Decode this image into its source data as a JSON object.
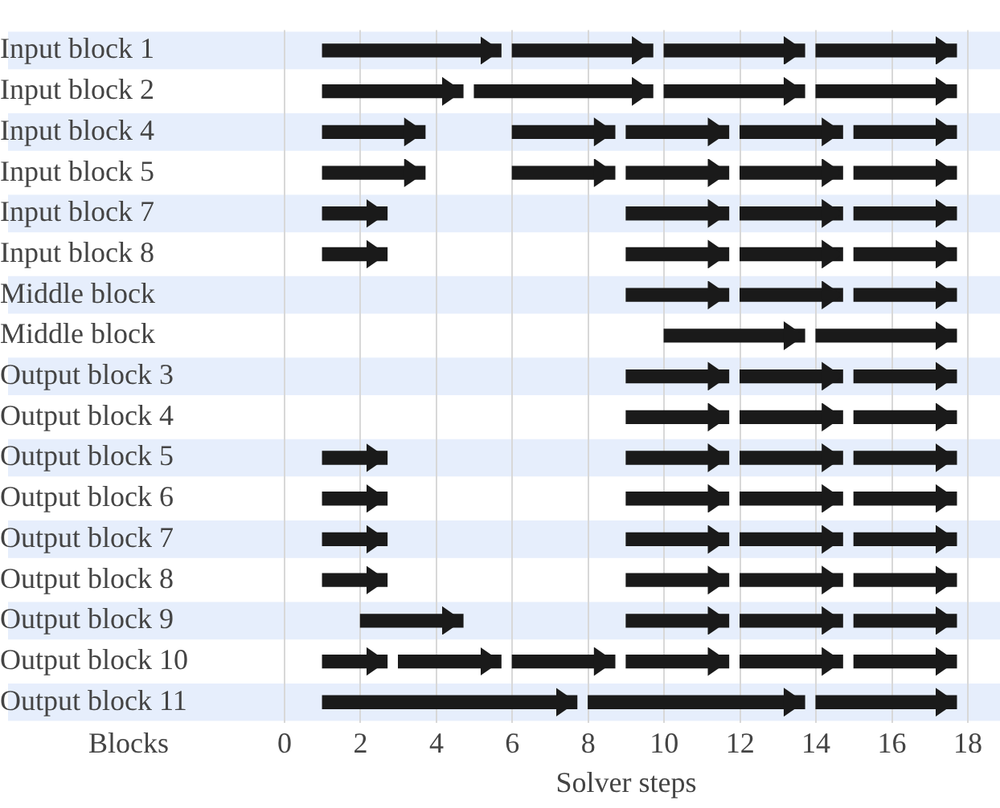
{
  "chart_data": {
    "type": "bar",
    "orientation": "horizontal",
    "xlabel": "Solver steps",
    "ylabel": "Blocks",
    "categories": [
      "Input block 1",
      "Input block 2",
      "Input block 4",
      "Input block 5",
      "Input block 7",
      "Input block 8",
      "Middle block",
      "Middle block",
      "Output block 3",
      "Output block 4",
      "Output block 5",
      "Output block 6",
      "Output block 7",
      "Output block 8",
      "Output block 9",
      "Output block 10",
      "Output block 11"
    ],
    "series": [
      {
        "color": "#1a1a1a",
        "base": [
          1,
          1,
          1,
          1,
          1,
          1,
          9,
          10,
          9,
          9,
          1,
          1,
          1,
          1,
          2,
          1,
          1
        ],
        "values": [
          4.7,
          3.7,
          2.7,
          2.7,
          1.7,
          1.7,
          2.7,
          3.7,
          2.7,
          2.7,
          1.7,
          1.7,
          1.7,
          1.7,
          2.7,
          1.7,
          6.7
        ]
      },
      {
        "color": "#1a1a1a",
        "base": [
          6,
          5,
          6,
          6,
          9,
          9,
          12,
          14,
          12,
          12,
          9,
          9,
          9,
          9,
          9,
          3,
          8
        ],
        "values": [
          3.7,
          4.7,
          2.7,
          2.7,
          2.7,
          2.7,
          2.7,
          3.7,
          2.7,
          2.7,
          2.7,
          2.7,
          2.7,
          2.7,
          2.7,
          2.7,
          5.7
        ]
      },
      {
        "color": "#1a1a1a",
        "base": [
          10,
          10,
          9,
          9,
          12,
          12,
          15,
          null,
          15,
          15,
          12,
          12,
          12,
          12,
          12,
          6,
          14
        ],
        "values": [
          3.7,
          3.7,
          2.7,
          2.7,
          2.7,
          2.7,
          2.7,
          null,
          2.7,
          2.7,
          2.7,
          2.7,
          2.7,
          2.7,
          2.7,
          2.7,
          3.7
        ]
      },
      {
        "color": "#1a1a1a",
        "base": [
          14,
          14,
          12,
          12,
          15,
          15,
          null,
          null,
          null,
          null,
          15,
          15,
          15,
          15,
          15,
          9,
          null
        ],
        "values": [
          3.7,
          3.7,
          2.7,
          2.7,
          2.7,
          2.7,
          null,
          null,
          null,
          null,
          2.7,
          2.7,
          2.7,
          2.7,
          2.7,
          2.7,
          null
        ]
      },
      {
        "color": "#1a1a1a",
        "base": [
          null,
          null,
          15,
          15,
          null,
          null,
          null,
          null,
          null,
          null,
          null,
          null,
          null,
          null,
          null,
          12,
          null
        ],
        "values": [
          null,
          null,
          2.7,
          2.7,
          null,
          null,
          null,
          null,
          null,
          null,
          null,
          null,
          null,
          null,
          null,
          2.7,
          null
        ]
      },
      {
        "color": "#1a1a1a",
        "base": [
          null,
          null,
          null,
          null,
          null,
          null,
          null,
          null,
          null,
          null,
          null,
          null,
          null,
          null,
          null,
          15,
          null
        ],
        "values": [
          null,
          null,
          null,
          null,
          null,
          null,
          null,
          null,
          null,
          null,
          null,
          null,
          null,
          null,
          null,
          2.7,
          null
        ]
      }
    ],
    "xlim": [
      0,
      18
    ],
    "xticks": [
      0,
      2,
      4,
      6,
      8,
      10,
      12,
      14,
      16,
      18
    ],
    "grid": "x",
    "legend": false
  }
}
